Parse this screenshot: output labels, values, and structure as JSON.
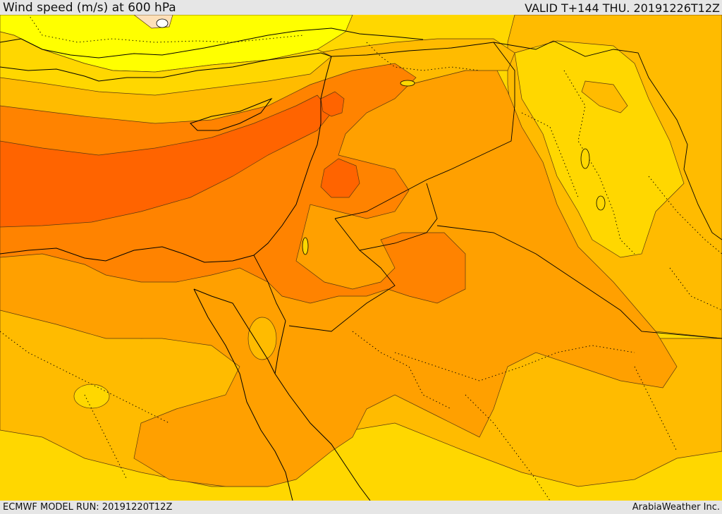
{
  "header": {
    "title": "Wind speed (m/s) at 600 hPa",
    "valid": "VALID T+144 THU. 20191226T12Z"
  },
  "footer": {
    "model_run": "ECMWF MODEL RUN: 20191220T12Z",
    "credit": "ArabiaWeather Inc."
  },
  "palette": {
    "lightest": "#ffff00",
    "light": "#ffd700",
    "mid_light": "#ffbb00",
    "mid": "#ffa000",
    "mid_dark": "#ff8300",
    "dark": "#ff6400",
    "pale": "#fde0b8",
    "contour": "#5a3a10",
    "border": "#000000"
  }
}
